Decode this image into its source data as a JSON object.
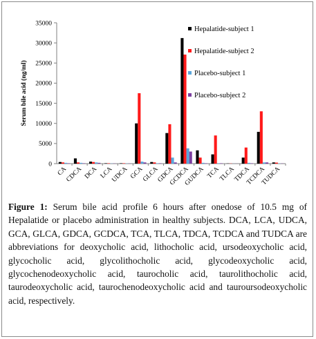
{
  "chart_data": {
    "type": "bar",
    "ylabel": "Serum bile acid (ng/ml)",
    "xlabel": "",
    "ylim": [
      0,
      35000
    ],
    "yticks": [
      0,
      5000,
      10000,
      15000,
      20000,
      25000,
      30000,
      35000
    ],
    "ytick_labels": [
      "0",
      "5000",
      "10000",
      "15000",
      "20000",
      "25000",
      "30000",
      "35000"
    ],
    "categories": [
      "CA",
      "CDCA",
      "DCA",
      "LCA",
      "UDCA",
      "GCA",
      "GLCA",
      "GDCA",
      "GCDCA",
      "GUDCA",
      "TCA",
      "TLCA",
      "TDCA",
      "TCDCA",
      "TUDCA"
    ],
    "legend_position": "top-right",
    "series": [
      {
        "name": "Hepalatide-subject 1",
        "color": "#000000",
        "values": [
          400,
          1300,
          500,
          100,
          100,
          10000,
          400,
          7600,
          31200,
          3300,
          2300,
          50,
          1500,
          7900,
          300
        ]
      },
      {
        "name": "Hepalatide-subject 2",
        "color": "#ff1a1a",
        "values": [
          300,
          300,
          400,
          100,
          100,
          17500,
          300,
          9800,
          27100,
          1500,
          7000,
          50,
          4000,
          13000,
          250
        ]
      },
      {
        "name": "Placebo-subject 1",
        "color": "#5aa6dc",
        "values": [
          200,
          200,
          300,
          50,
          50,
          500,
          100,
          1500,
          3800,
          200,
          100,
          20,
          200,
          300,
          50
        ]
      },
      {
        "name": "Placebo-subject 2",
        "color": "#7b3fa0",
        "values": [
          100,
          100,
          200,
          50,
          50,
          300,
          100,
          300,
          3000,
          100,
          100,
          20,
          100,
          300,
          50
        ]
      }
    ]
  },
  "caption": {
    "label": "Figure 1:",
    "text": " Serum bile acid profile 6 hours after onedose of 10.5 mg of Hepalatide or placebo administration in healthy subjects. DCA, LCA, UDCA, GCA, GLCA, GDCA, GCDCA, TCA, TLCA, TDCA, TCDCA and TUDCA are abbreviations for deoxycholic acid, lithocholic acid, ursodeoxycholic acid, glycocholic acid, glycolithocholic acid, glycodeoxycholic acid, glycochenodeoxycholic acid, taurocholic acid, taurolithocholic acid, taurodeoxycholic acid, taurochenodeoxycholic acid and tauroursodeoxycholic acid, respectively."
  }
}
